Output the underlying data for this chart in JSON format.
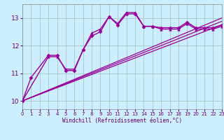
{
  "background_color": "#cceeff",
  "grid_color": "#aacccc",
  "line_color": "#990099",
  "xlabel": "Windchill (Refroidissement éolien,°C)",
  "xlim": [
    0,
    23
  ],
  "ylim": [
    9.7,
    13.5
  ],
  "yticks": [
    10,
    11,
    12,
    13
  ],
  "xticks": [
    0,
    1,
    2,
    3,
    4,
    5,
    6,
    7,
    8,
    9,
    10,
    11,
    12,
    13,
    14,
    15,
    16,
    17,
    18,
    19,
    20,
    21,
    22,
    23
  ],
  "series": [
    {
      "x": [
        0,
        1,
        3,
        4,
        5,
        6,
        7,
        8,
        9,
        10,
        11,
        12,
        13,
        14,
        15,
        16,
        17,
        18,
        19,
        20,
        21,
        22,
        23
      ],
      "y": [
        10.0,
        10.85,
        11.65,
        11.65,
        11.1,
        11.1,
        11.85,
        12.35,
        12.5,
        13.05,
        12.75,
        13.15,
        13.15,
        12.7,
        12.7,
        12.65,
        12.65,
        12.65,
        12.85,
        12.65,
        12.65,
        12.65,
        12.75
      ],
      "marker": "D",
      "marker_size": 2.5,
      "linewidth": 1.0
    },
    {
      "x": [
        0,
        3,
        4,
        5,
        6,
        7,
        8,
        9,
        10,
        11,
        12,
        13,
        14,
        15,
        16,
        17,
        18,
        19,
        20,
        21,
        22,
        23
      ],
      "y": [
        10.0,
        11.6,
        11.6,
        11.15,
        11.15,
        11.85,
        12.45,
        12.6,
        13.05,
        12.8,
        13.2,
        13.2,
        12.7,
        12.7,
        12.6,
        12.6,
        12.6,
        12.8,
        12.6,
        12.6,
        12.6,
        12.7
      ],
      "marker": "^",
      "marker_size": 2.5,
      "linewidth": 1.0
    },
    {
      "x": [
        0,
        23
      ],
      "y": [
        10.0,
        12.75
      ],
      "marker": null,
      "linewidth": 0.9
    },
    {
      "x": [
        0,
        23
      ],
      "y": [
        10.0,
        12.88
      ],
      "marker": null,
      "linewidth": 0.9
    },
    {
      "x": [
        0,
        23
      ],
      "y": [
        10.0,
        13.0
      ],
      "marker": null,
      "linewidth": 0.9
    }
  ]
}
